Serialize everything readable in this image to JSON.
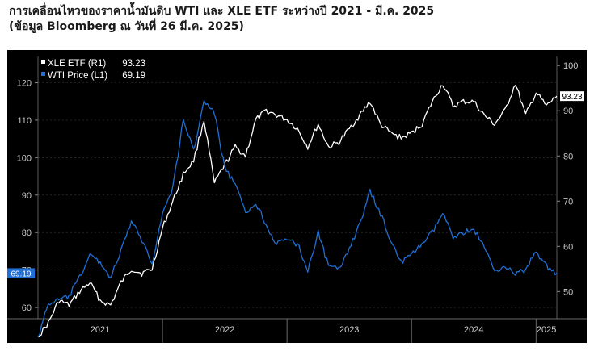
{
  "title_line1": "การเคลื่อนไหวของราคาน้ำมันดิบ WTI และ XLE ETF ระหว่างปี 2021 - มี.ค. 2025",
  "title_line2": "(ข้อมูล Bloomberg ณ วันที่ 26 มี.ค. 2025)",
  "chart_data": {
    "type": "line",
    "x_labels": [
      "2021",
      "2022",
      "2023",
      "2024",
      "2025"
    ],
    "left_axis": {
      "ticks": [
        60,
        70,
        80,
        90,
        100,
        110,
        120
      ],
      "ylim": [
        57,
        127
      ]
    },
    "right_axis": {
      "ticks": [
        50,
        60,
        70,
        80,
        90,
        100
      ],
      "ylim": [
        44,
        102
      ]
    },
    "legend_position": "top-left",
    "series": [
      {
        "name": "XLE ETF (R1)",
        "last_value_label": "93.23",
        "axis": "right",
        "color": "#ffffff",
        "x": [
          "2021-01",
          "2021-02",
          "2021-03",
          "2021-04",
          "2021-05",
          "2021-06",
          "2021-07",
          "2021-08",
          "2021-09",
          "2021-10",
          "2021-11",
          "2021-12",
          "2022-01",
          "2022-02",
          "2022-03",
          "2022-04",
          "2022-05",
          "2022-06",
          "2022-07",
          "2022-08",
          "2022-09",
          "2022-10",
          "2022-11",
          "2022-12",
          "2023-01",
          "2023-02",
          "2023-03",
          "2023-04",
          "2023-05",
          "2023-06",
          "2023-07",
          "2023-08",
          "2023-09",
          "2023-10",
          "2023-11",
          "2023-12",
          "2024-01",
          "2024-02",
          "2024-03",
          "2024-04",
          "2024-05",
          "2024-06",
          "2024-07",
          "2024-08",
          "2024-09",
          "2024-10",
          "2024-11",
          "2024-12",
          "2025-01",
          "2025-02",
          "2025-03"
        ],
        "values": [
          40,
          43,
          48,
          47,
          50,
          52,
          48,
          47,
          52,
          55,
          54,
          55,
          64,
          70,
          76,
          79,
          88,
          74,
          78,
          82,
          80,
          88,
          90,
          89,
          88,
          86,
          82,
          87,
          82,
          83,
          86,
          89,
          92,
          87,
          85,
          84,
          85,
          87,
          92,
          96,
          91,
          92,
          92,
          89,
          87,
          90,
          96,
          89,
          94,
          91,
          93.23
        ]
      },
      {
        "name": "WTI Price (L1)",
        "last_value_label": "69.19",
        "axis": "left",
        "color": "#1f6fd6",
        "x": [
          "2021-01",
          "2021-02",
          "2021-03",
          "2021-04",
          "2021-05",
          "2021-06",
          "2021-07",
          "2021-08",
          "2021-09",
          "2021-10",
          "2021-11",
          "2021-12",
          "2022-01",
          "2022-02",
          "2022-03",
          "2022-04",
          "2022-05",
          "2022-06",
          "2022-07",
          "2022-08",
          "2022-09",
          "2022-10",
          "2022-11",
          "2022-12",
          "2023-01",
          "2023-02",
          "2023-03",
          "2023-04",
          "2023-05",
          "2023-06",
          "2023-07",
          "2023-08",
          "2023-09",
          "2023-10",
          "2023-11",
          "2023-12",
          "2024-01",
          "2024-02",
          "2024-03",
          "2024-04",
          "2024-05",
          "2024-06",
          "2024-07",
          "2024-08",
          "2024-09",
          "2024-10",
          "2024-11",
          "2024-12",
          "2025-01",
          "2025-02",
          "2025-03"
        ],
        "values": [
          52,
          61,
          62,
          63,
          68,
          74,
          72,
          68,
          75,
          83,
          78,
          72,
          85,
          92,
          110,
          102,
          115,
          112,
          97,
          93,
          85,
          88,
          82,
          77,
          78,
          77,
          70,
          80,
          71,
          70,
          76,
          82,
          91,
          85,
          78,
          72,
          74,
          77,
          80,
          85,
          79,
          80,
          81,
          76,
          70,
          71,
          69,
          70,
          75,
          71,
          69.19
        ]
      }
    ]
  }
}
